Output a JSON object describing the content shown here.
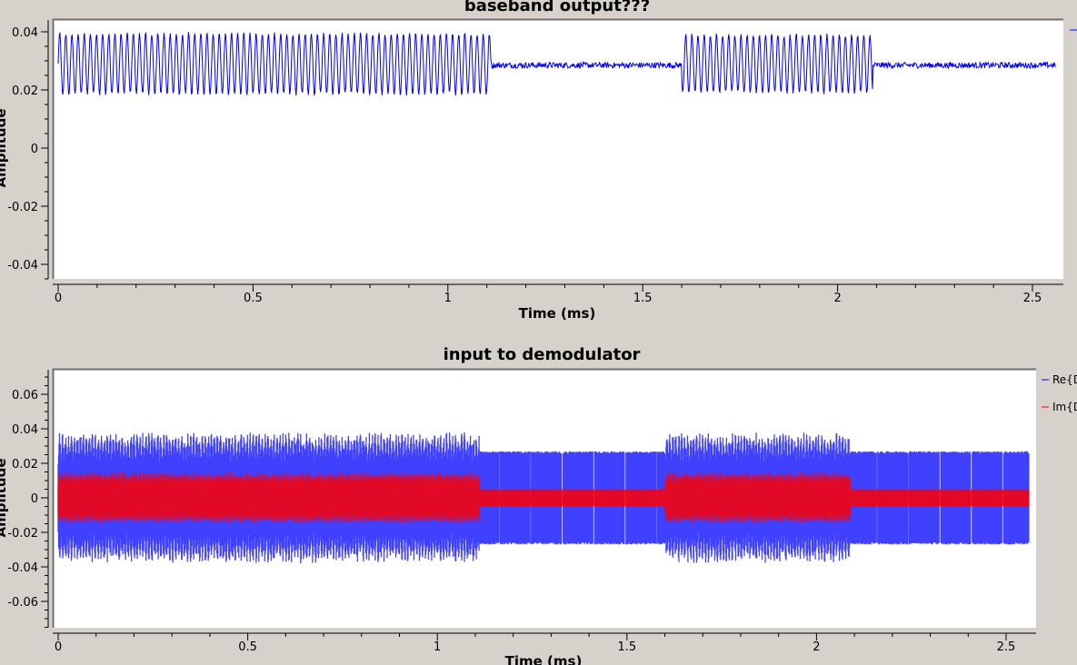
{
  "chart_data": [
    {
      "type": "line",
      "title": "baseband output???",
      "xlabel": "Time (ms)",
      "ylabel": "Amplitude",
      "xlim": [
        0,
        2.58
      ],
      "ylim": [
        -0.043,
        0.043
      ],
      "xticks": [
        "0",
        "0.5",
        "1",
        "1.5",
        "2",
        "2.5"
      ],
      "xtick_values": [
        0,
        0.5,
        1,
        1.5,
        2,
        2.5
      ],
      "yticks": [
        "0.04",
        "0.02",
        "0",
        "-0.02",
        "-0.04"
      ],
      "ytick_values": [
        0.04,
        0.02,
        0,
        -0.02,
        -0.04
      ],
      "grid": false,
      "legend": "right",
      "series": [
        {
          "color": "#0000ff",
          "x_range": [
            0,
            2.56
          ],
          "bursts": [
            {
              "start": 0,
              "end": 1.11,
              "min": 0.018,
              "max": 0.04,
              "center": 0.029
            },
            {
              "start": 1.6,
              "end": 2.09,
              "min": 0.018,
              "max": 0.039,
              "center": 0.029
            }
          ],
          "idle_level": 0.0285,
          "idle_noise": 0.001
        }
      ]
    },
    {
      "type": "line",
      "title": "input to demodulator",
      "xlabel": "Time (ms)",
      "ylabel": "Amplitude",
      "xlim": [
        0,
        2.58
      ],
      "ylim": [
        -0.073,
        0.073
      ],
      "xticks": [
        "0",
        "0.5",
        "1",
        "1.5",
        "2",
        "2.5"
      ],
      "xtick_values": [
        0,
        0.5,
        1,
        1.5,
        2,
        2.5
      ],
      "yticks": [
        "0.06",
        "0.04",
        "0.02",
        "0",
        "-0.02",
        "-0.04",
        "-0.06"
      ],
      "ytick_values": [
        0.06,
        0.04,
        0.02,
        0,
        -0.02,
        -0.04,
        -0.06
      ],
      "grid": false,
      "legend": "right",
      "series": [
        {
          "name": "Re{D",
          "color": "#0000ff",
          "x_range": [
            0,
            2.56
          ],
          "bursts": [
            {
              "start": 0,
              "end": 1.11,
              "min": -0.038,
              "max": 0.038
            },
            {
              "start": 1.6,
              "end": 2.09,
              "min": -0.038,
              "max": 0.038
            }
          ],
          "idle_min": -0.027,
          "idle_max": 0.027
        },
        {
          "name": "Im{D",
          "color": "#ff0000",
          "x_range": [
            0,
            2.56
          ],
          "bursts": [
            {
              "start": 0,
              "end": 1.11,
              "min": -0.015,
              "max": 0.015
            },
            {
              "start": 1.6,
              "end": 2.09,
              "min": -0.015,
              "max": 0.015
            }
          ],
          "idle_min": -0.005,
          "idle_max": 0.005
        }
      ]
    }
  ]
}
